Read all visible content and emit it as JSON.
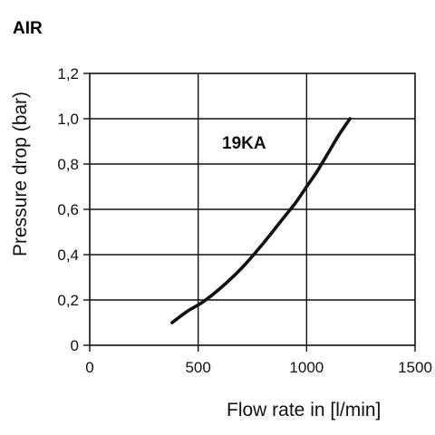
{
  "chart_data": {
    "type": "line",
    "title": "AIR",
    "xlabel": "Flow rate in [l/min]",
    "ylabel": "Pressure drop (bar)",
    "xlim": [
      0,
      1500
    ],
    "ylim": [
      0,
      1.2
    ],
    "x_ticks": [
      0,
      500,
      1000,
      1500
    ],
    "x_tick_labels": [
      "0",
      "500",
      "1000",
      "1500"
    ],
    "y_ticks": [
      0,
      0.2,
      0.4,
      0.6,
      0.8,
      1.0,
      1.2
    ],
    "y_tick_labels": [
      "0",
      "0,2",
      "0,4",
      "0,6",
      "0,8",
      "1,0",
      "1,2"
    ],
    "grid": true,
    "series": [
      {
        "name": "19KA",
        "color": "#111111",
        "x": [
          380,
          450,
          520,
          600,
          700,
          800,
          900,
          950,
          1000,
          1050,
          1100,
          1150,
          1200
        ],
        "y": [
          0.1,
          0.15,
          0.19,
          0.25,
          0.34,
          0.45,
          0.57,
          0.63,
          0.7,
          0.77,
          0.85,
          0.93,
          1.0
        ]
      }
    ]
  }
}
